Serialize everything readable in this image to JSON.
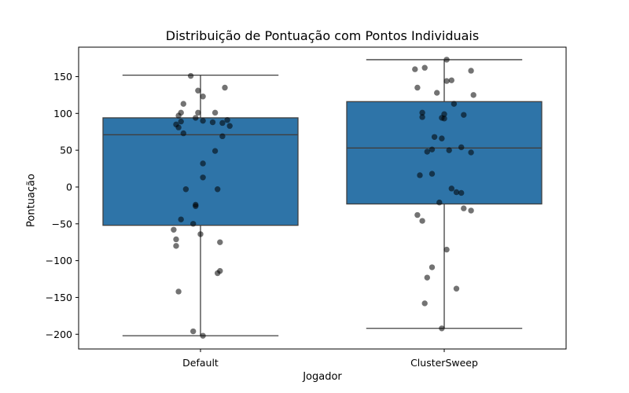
{
  "chart_data": {
    "type": "box",
    "title": "Distribuição de Pontuação com Pontos Individuais",
    "xlabel": "Jogador",
    "ylabel": "Pontuação",
    "ylim": [
      -220,
      190
    ],
    "yticks": [
      -200,
      -150,
      -100,
      -50,
      0,
      50,
      100,
      150
    ],
    "categories": [
      "Default",
      "ClusterSweep"
    ],
    "box_color": "#2e74a8",
    "point_color": "#000000",
    "boxes": [
      {
        "name": "Default",
        "whisker_low": -202,
        "q1": -52,
        "median": 71,
        "q3": 94,
        "whisker_high": 152
      },
      {
        "name": "ClusterSweep",
        "whisker_low": -192,
        "q1": -23,
        "median": 53,
        "q3": 116,
        "whisker_high": 173
      }
    ],
    "points": [
      [
        {
          "y": 151,
          "j": -0.04
        },
        {
          "y": 135,
          "j": 0.1
        },
        {
          "y": 131,
          "j": -0.01
        },
        {
          "y": 123,
          "j": 0.01
        },
        {
          "y": 113,
          "j": -0.07
        },
        {
          "y": 101,
          "j": -0.08
        },
        {
          "y": 101,
          "j": -0.01
        },
        {
          "y": 101,
          "j": 0.06
        },
        {
          "y": 97,
          "j": -0.09
        },
        {
          "y": 94,
          "j": -0.02
        },
        {
          "y": 91,
          "j": 0.11
        },
        {
          "y": 90,
          "j": 0.01
        },
        {
          "y": 89,
          "j": -0.08
        },
        {
          "y": 88,
          "j": 0.05
        },
        {
          "y": 87,
          "j": 0.09
        },
        {
          "y": 85,
          "j": -0.1
        },
        {
          "y": 83,
          "j": 0.12
        },
        {
          "y": 81,
          "j": -0.09
        },
        {
          "y": 73,
          "j": -0.07
        },
        {
          "y": 69,
          "j": 0.09
        },
        {
          "y": 49,
          "j": 0.06
        },
        {
          "y": 32,
          "j": 0.01
        },
        {
          "y": 13,
          "j": 0.01
        },
        {
          "y": -3,
          "j": -0.06
        },
        {
          "y": -3,
          "j": 0.07
        },
        {
          "y": -24,
          "j": -0.02
        },
        {
          "y": -26,
          "j": -0.02
        },
        {
          "y": -44,
          "j": -0.08
        },
        {
          "y": -50,
          "j": -0.03
        },
        {
          "y": -58,
          "j": -0.11
        },
        {
          "y": -64,
          "j": 0.0
        },
        {
          "y": -71,
          "j": -0.1
        },
        {
          "y": -75,
          "j": 0.08
        },
        {
          "y": -80,
          "j": -0.1
        },
        {
          "y": -114,
          "j": 0.08
        },
        {
          "y": -117,
          "j": 0.07
        },
        {
          "y": -142,
          "j": -0.09
        },
        {
          "y": -196,
          "j": -0.03
        },
        {
          "y": -202,
          "j": 0.01
        }
      ],
      [
        {
          "y": 173,
          "j": 0.01
        },
        {
          "y": 162,
          "j": -0.08
        },
        {
          "y": 160,
          "j": -0.12
        },
        {
          "y": 158,
          "j": 0.11
        },
        {
          "y": 145,
          "j": 0.03
        },
        {
          "y": 144,
          "j": 0.01
        },
        {
          "y": 135,
          "j": -0.11
        },
        {
          "y": 128,
          "j": -0.03
        },
        {
          "y": 125,
          "j": 0.12
        },
        {
          "y": 113,
          "j": 0.04
        },
        {
          "y": 101,
          "j": -0.09
        },
        {
          "y": 99,
          "j": 0.0
        },
        {
          "y": 98,
          "j": 0.08
        },
        {
          "y": 95,
          "j": -0.09
        },
        {
          "y": 94,
          "j": -0.01
        },
        {
          "y": 93,
          "j": 0.0
        },
        {
          "y": 68,
          "j": -0.04
        },
        {
          "y": 66,
          "j": -0.01
        },
        {
          "y": 54,
          "j": 0.07
        },
        {
          "y": 51,
          "j": -0.05
        },
        {
          "y": 50,
          "j": 0.02
        },
        {
          "y": 48,
          "j": -0.07
        },
        {
          "y": 47,
          "j": 0.11
        },
        {
          "y": 18,
          "j": -0.05
        },
        {
          "y": 16,
          "j": -0.1
        },
        {
          "y": -2,
          "j": 0.03
        },
        {
          "y": -7,
          "j": 0.05
        },
        {
          "y": -8,
          "j": 0.07
        },
        {
          "y": -21,
          "j": -0.02
        },
        {
          "y": -29,
          "j": 0.08
        },
        {
          "y": -32,
          "j": 0.11
        },
        {
          "y": -38,
          "j": -0.11
        },
        {
          "y": -46,
          "j": -0.09
        },
        {
          "y": -85,
          "j": 0.01
        },
        {
          "y": -109,
          "j": -0.05
        },
        {
          "y": -123,
          "j": -0.07
        },
        {
          "y": -138,
          "j": 0.05
        },
        {
          "y": -158,
          "j": -0.08
        },
        {
          "y": -192,
          "j": -0.01
        }
      ]
    ]
  }
}
